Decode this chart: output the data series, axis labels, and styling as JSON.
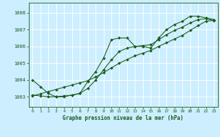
{
  "title": "Graphe pression niveau de la mer (hPa)",
  "bg_color": "#cceeff",
  "grid_color": "#ffffff",
  "line_color": "#1a5c1a",
  "xlim": [
    -0.5,
    23.5
  ],
  "ylim": [
    1002.4,
    1008.6
  ],
  "xticks": [
    0,
    1,
    2,
    3,
    4,
    5,
    6,
    7,
    8,
    9,
    10,
    11,
    12,
    13,
    14,
    15,
    16,
    17,
    18,
    19,
    20,
    21,
    22,
    23
  ],
  "yticks": [
    1003,
    1004,
    1005,
    1006,
    1007,
    1008
  ],
  "series1": [
    1004.0,
    1003.6,
    1003.2,
    1003.0,
    1003.0,
    1003.1,
    1003.2,
    1003.9,
    1004.5,
    1005.3,
    1006.4,
    1006.5,
    1006.5,
    1006.0,
    1006.0,
    1005.9,
    1006.5,
    1007.0,
    1007.3,
    1007.5,
    1007.8,
    1007.8,
    1007.7,
    1007.6
  ],
  "series2": [
    1003.1,
    1003.05,
    1003.0,
    1003.0,
    1003.05,
    1003.1,
    1003.2,
    1003.5,
    1004.0,
    1004.6,
    1005.2,
    1005.7,
    1005.9,
    1006.0,
    1006.05,
    1006.1,
    1006.4,
    1006.7,
    1006.95,
    1007.15,
    1007.4,
    1007.6,
    1007.65,
    1007.55
  ],
  "trend": [
    1003.05,
    1003.18,
    1003.31,
    1003.44,
    1003.57,
    1003.7,
    1003.83,
    1003.96,
    1004.18,
    1004.44,
    1004.72,
    1005.0,
    1005.22,
    1005.44,
    1005.6,
    1005.76,
    1006.0,
    1006.22,
    1006.44,
    1006.66,
    1006.95,
    1007.24,
    1007.5,
    1007.55
  ]
}
